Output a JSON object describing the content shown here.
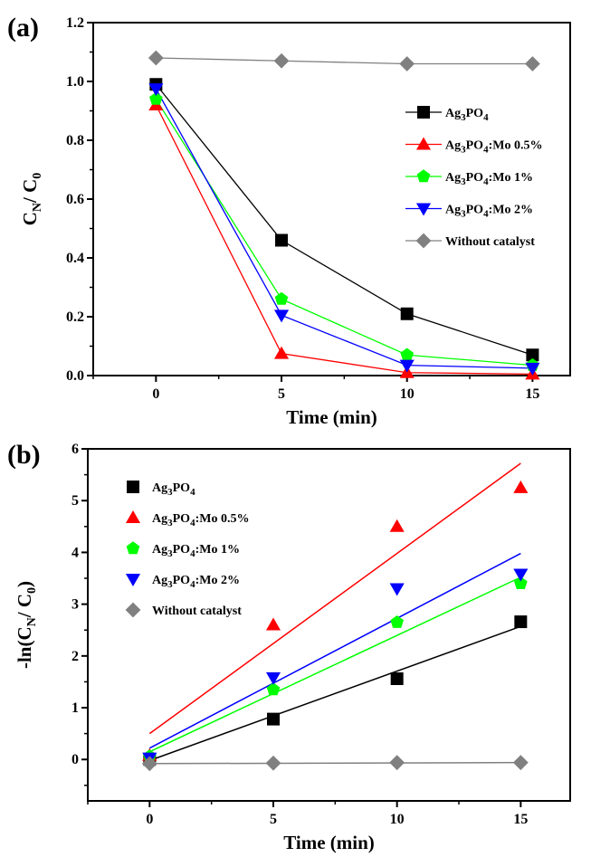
{
  "chart_data": [
    {
      "panel_label": "(a)",
      "type": "line",
      "xlabel": "Time (min)",
      "ylabel": {
        "base1": "C",
        "sub1": "N",
        "mid": "/ C",
        "sub2": "0"
      },
      "xlim": [
        -2.5,
        16.5
      ],
      "ylim": [
        0.0,
        1.2
      ],
      "xticks": [
        0,
        5,
        10,
        15
      ],
      "xtick_labels": [
        "0",
        "5",
        "10",
        "15"
      ],
      "yticks": [
        0.0,
        0.2,
        0.4,
        0.6,
        0.8,
        1.0,
        1.2
      ],
      "ytick_labels": [
        "0.0",
        "0.2",
        "0.4",
        "0.6",
        "0.8",
        "1.0",
        "1.2"
      ],
      "grid": false,
      "legend_position": "right",
      "x": [
        0,
        5,
        10,
        15
      ],
      "series": [
        {
          "name": "Ag3PO4",
          "label_parts": [
            [
              "Ag",
              ""
            ],
            [
              "3",
              "sub"
            ],
            [
              "PO",
              ""
            ],
            [
              "4",
              "sub"
            ]
          ],
          "marker": "square",
          "color": "#000000",
          "line_color": "#000000",
          "values": [
            0.99,
            0.46,
            0.21,
            0.07
          ]
        },
        {
          "name": "Ag3PO4:Mo 0.5%",
          "label_parts": [
            [
              "Ag",
              ""
            ],
            [
              "3",
              "sub"
            ],
            [
              "PO",
              ""
            ],
            [
              "4",
              "sub"
            ],
            [
              ":Mo 0.5%",
              ""
            ]
          ],
          "marker": "triangle-up",
          "color": "#ff0000",
          "line_color": "#ff0000",
          "values": [
            0.92,
            0.075,
            0.01,
            0.005
          ]
        },
        {
          "name": "Ag3PO4:Mo 1%",
          "label_parts": [
            [
              "Ag",
              ""
            ],
            [
              "3",
              "sub"
            ],
            [
              "PO",
              ""
            ],
            [
              "4",
              "sub"
            ],
            [
              ":Mo 1%",
              ""
            ]
          ],
          "marker": "pentagon",
          "color": "#00ff00",
          "line_color": "#00ff00",
          "values": [
            0.94,
            0.26,
            0.07,
            0.035
          ]
        },
        {
          "name": "Ag3PO4:Mo 2%",
          "label_parts": [
            [
              "Ag",
              ""
            ],
            [
              "3",
              "sub"
            ],
            [
              "PO",
              ""
            ],
            [
              "4",
              "sub"
            ],
            [
              ":Mo 2%",
              ""
            ]
          ],
          "marker": "triangle-down",
          "color": "#0000ff",
          "line_color": "#0000ff",
          "values": [
            0.975,
            0.205,
            0.035,
            0.025
          ]
        },
        {
          "name": "Without catalyst",
          "label_parts": [
            [
              "Without catalyst",
              ""
            ]
          ],
          "marker": "diamond",
          "color": "#808080",
          "line_color": "#808080",
          "values": [
            1.08,
            1.07,
            1.06,
            1.06
          ]
        }
      ]
    },
    {
      "panel_label": "(b)",
      "type": "scatter",
      "xlabel": "Time (min)",
      "ylabel": {
        "pre": "-ln(C",
        "sub1": "N",
        "mid": "/ C",
        "sub2": "0",
        "post": ")"
      },
      "xlim": [
        -2.5,
        17.0
      ],
      "ylim": [
        -0.8,
        6.0
      ],
      "xticks": [
        0,
        5,
        10,
        15
      ],
      "xtick_labels": [
        "0",
        "5",
        "10",
        "15"
      ],
      "yticks": [
        0,
        1,
        2,
        3,
        4,
        5,
        6
      ],
      "ytick_labels": [
        "0",
        "1",
        "2",
        "3",
        "4",
        "5",
        "6"
      ],
      "grid": false,
      "legend_position": "top-left",
      "x": [
        0,
        5,
        10,
        15
      ],
      "series": [
        {
          "name": "Ag3PO4",
          "label_parts": [
            [
              "Ag",
              ""
            ],
            [
              "3",
              "sub"
            ],
            [
              "PO",
              ""
            ],
            [
              "4",
              "sub"
            ]
          ],
          "marker": "square",
          "color": "#000000",
          "line_color": "#000000",
          "values": [
            0.0,
            0.78,
            1.56,
            2.66
          ],
          "fit": [
            [
              0,
              -0.02
            ],
            [
              15,
              2.57
            ]
          ]
        },
        {
          "name": "Ag3PO4:Mo 0.5%",
          "label_parts": [
            [
              "Ag",
              ""
            ],
            [
              "3",
              "sub"
            ],
            [
              "PO",
              ""
            ],
            [
              "4",
              "sub"
            ],
            [
              ":Mo 0.5%",
              ""
            ]
          ],
          "marker": "triangle-up",
          "color": "#ff0000",
          "line_color": "#ff0000",
          "values": [
            0.08,
            2.6,
            4.5,
            5.25
          ],
          "fit": [
            [
              0,
              0.5
            ],
            [
              15,
              5.72
            ]
          ]
        },
        {
          "name": "Ag3PO4:Mo 1%",
          "label_parts": [
            [
              "Ag",
              ""
            ],
            [
              "3",
              "sub"
            ],
            [
              "PO",
              ""
            ],
            [
              "4",
              "sub"
            ],
            [
              ":Mo 1%",
              ""
            ]
          ],
          "marker": "pentagon",
          "color": "#00ff00",
          "line_color": "#00ff00",
          "values": [
            0.06,
            1.35,
            2.65,
            3.4
          ],
          "fit": [
            [
              0,
              0.15
            ],
            [
              15,
              3.52
            ]
          ]
        },
        {
          "name": "Ag3PO4:Mo 2%",
          "label_parts": [
            [
              "Ag",
              ""
            ],
            [
              "3",
              "sub"
            ],
            [
              "PO",
              ""
            ],
            [
              "4",
              "sub"
            ],
            [
              ":Mo 2%",
              ""
            ]
          ],
          "marker": "triangle-down",
          "color": "#0000ff",
          "line_color": "#0000ff",
          "values": [
            0.03,
            1.58,
            3.3,
            3.58
          ],
          "fit": [
            [
              0,
              0.22
            ],
            [
              15,
              3.98
            ]
          ]
        },
        {
          "name": "Without catalyst",
          "label_parts": [
            [
              "Without catalyst",
              ""
            ]
          ],
          "marker": "diamond",
          "color": "#808080",
          "line_color": "#808080",
          "values": [
            -0.08,
            -0.07,
            -0.06,
            -0.06
          ],
          "fit": [
            [
              0,
              -0.08
            ],
            [
              15,
              -0.06
            ]
          ]
        }
      ]
    }
  ]
}
